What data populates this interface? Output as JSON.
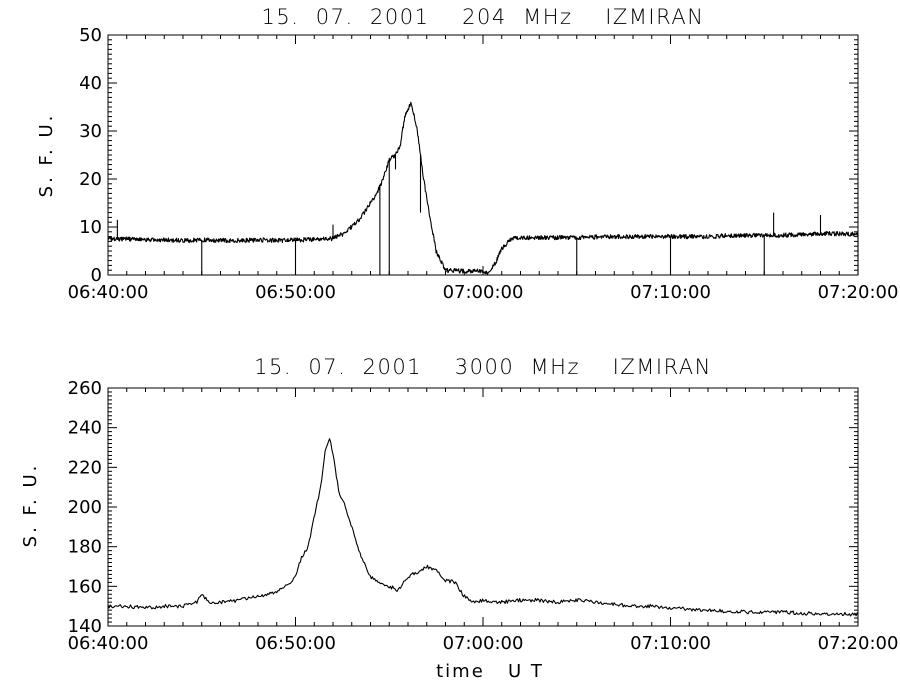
{
  "chart_data": [
    {
      "type": "line",
      "title": "15.  07.  2001    204  MHz    IZMIRAN",
      "ylabel": "S. F. U.",
      "xlabel": "",
      "ylim": [
        0,
        50
      ],
      "yticks": [
        0,
        10,
        20,
        30,
        40,
        50
      ],
      "xticks": [
        "06:40:00",
        "06:50:00",
        "07:00:00",
        "07:10:00",
        "07:20:00"
      ],
      "xlim_minutes": [
        0,
        40
      ],
      "grid": false,
      "series": [
        {
          "x": [
            "06:40:00",
            "06:41:00",
            "06:42:00",
            "06:43:00",
            "06:44:00",
            "06:45:00",
            "06:46:00",
            "06:47:00",
            "06:48:00",
            "06:49:00",
            "06:50:00",
            "06:51:00",
            "06:52:00",
            "06:52:30",
            "06:53:00",
            "06:53:30",
            "06:54:00",
            "06:54:20",
            "06:54:40",
            "06:55:00",
            "06:55:20",
            "06:55:35",
            "06:55:50",
            "06:56:10",
            "06:56:30",
            "06:56:50",
            "06:57:10",
            "06:57:30",
            "06:58:00",
            "06:59:00",
            "07:00:00",
            "07:00:20",
            "07:00:40",
            "07:01:00",
            "07:01:30",
            "07:02:00",
            "07:03:00",
            "07:04:00",
            "07:05:00",
            "07:06:00",
            "07:07:00",
            "07:08:00",
            "07:09:00",
            "07:10:00",
            "07:11:00",
            "07:12:00",
            "07:13:00",
            "07:14:00",
            "07:15:00",
            "07:16:00",
            "07:17:00",
            "07:18:00",
            "07:19:00",
            "07:20:00"
          ],
          "y": [
            7.5,
            7.5,
            7.4,
            7.3,
            7.2,
            7.3,
            7.2,
            7.2,
            7.3,
            7.2,
            7.3,
            7.4,
            7.6,
            8.5,
            10,
            12,
            15,
            17,
            20,
            24,
            25,
            27,
            33,
            36,
            30,
            20,
            12,
            5,
            1,
            0.8,
            0.8,
            0.5,
            2.5,
            5.5,
            7.5,
            7.8,
            7.8,
            7.8,
            7.8,
            7.9,
            8,
            8,
            8,
            8,
            8,
            8,
            8.2,
            8.2,
            8.3,
            8.3,
            8.4,
            8.6,
            8.6,
            8.5
          ]
        }
      ],
      "spikes": [
        {
          "x": "06:40:30",
          "y": 11.5
        },
        {
          "x": "06:45:00",
          "y": 0
        },
        {
          "x": "06:50:00",
          "y": 0
        },
        {
          "x": "06:52:00",
          "y": 10.5
        },
        {
          "x": "06:54:30",
          "y": 0
        },
        {
          "x": "06:55:00",
          "y": 0
        },
        {
          "x": "06:55:20",
          "y": 22
        },
        {
          "x": "06:56:40",
          "y": 13
        },
        {
          "x": "07:05:00",
          "y": 0
        },
        {
          "x": "07:10:00",
          "y": 0
        },
        {
          "x": "07:15:00",
          "y": 0
        },
        {
          "x": "07:15:30",
          "y": 13
        },
        {
          "x": "07:18:00",
          "y": 12.5
        },
        {
          "x": "07:20:00",
          "y": 0
        }
      ]
    },
    {
      "type": "line",
      "title": "15.  07.  2001    3000  MHz    IZMIRAN",
      "ylabel": "S. F. U.",
      "xlabel": "time   U T",
      "ylim": [
        140,
        260
      ],
      "yticks": [
        140,
        160,
        180,
        200,
        220,
        240,
        260
      ],
      "xticks": [
        "06:40:00",
        "06:50:00",
        "07:00:00",
        "07:10:00",
        "07:20:00"
      ],
      "xlim_minutes": [
        0,
        40
      ],
      "grid": false,
      "series": [
        {
          "x": [
            "06:40:00",
            "06:41:00",
            "06:42:00",
            "06:43:00",
            "06:44:00",
            "06:44:45",
            "06:45:00",
            "06:45:30",
            "06:46:00",
            "06:47:00",
            "06:48:00",
            "06:49:00",
            "06:49:30",
            "06:50:00",
            "06:50:20",
            "06:50:40",
            "06:51:00",
            "06:51:20",
            "06:51:35",
            "06:51:50",
            "06:52:05",
            "06:52:20",
            "06:52:40",
            "06:53:00",
            "06:53:30",
            "06:54:00",
            "06:54:30",
            "06:55:00",
            "06:55:30",
            "06:56:00",
            "06:56:30",
            "06:57:00",
            "06:57:30",
            "06:58:00",
            "06:58:30",
            "06:59:00",
            "06:59:30",
            "07:00:00",
            "07:01:00",
            "07:02:00",
            "07:03:00",
            "07:04:00",
            "07:05:00",
            "07:06:00",
            "07:07:00",
            "07:08:00",
            "07:09:00",
            "07:10:00",
            "07:12:00",
            "07:14:00",
            "07:16:00",
            "07:18:00",
            "07:20:00"
          ],
          "y": [
            150,
            150,
            149,
            150,
            150,
            152,
            156,
            151,
            152,
            153,
            155,
            157,
            160,
            165,
            175,
            180,
            195,
            210,
            228,
            234,
            222,
            206,
            200,
            190,
            175,
            165,
            162,
            160,
            158,
            165,
            167,
            170,
            168,
            163,
            162,
            155,
            152,
            153,
            152,
            153,
            153,
            152,
            153,
            152,
            151,
            150,
            150,
            149,
            148,
            147,
            147,
            146,
            146
          ]
        }
      ]
    }
  ]
}
